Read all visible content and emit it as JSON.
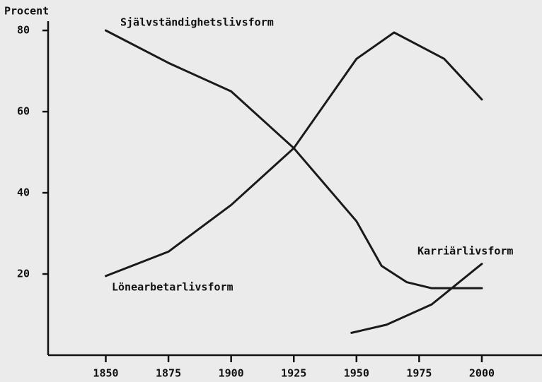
{
  "chart_data": {
    "type": "line",
    "y_label": "Procent",
    "xlim": [
      1827,
      2024
    ],
    "xticks": [
      1850,
      1875,
      1900,
      1925,
      1950,
      1975,
      2000
    ],
    "ylim": [
      0,
      87.5
    ],
    "yticks": [
      20,
      40,
      60,
      80
    ],
    "series": [
      {
        "name": "Självständighetslivsform",
        "color": "#1a1a1a",
        "x": [
          1850,
          1875,
          1900,
          1925,
          1950,
          1960,
          1970,
          1980,
          2000
        ],
        "values": [
          80,
          72,
          65,
          51,
          33,
          22,
          18,
          16.5,
          16.5
        ]
      },
      {
        "name": "Lönearbetarlivsform",
        "color": "#1a1a1a",
        "x": [
          1850,
          1875,
          1900,
          1925,
          1950,
          1965,
          1985,
          2000
        ],
        "values": [
          19.5,
          25.5,
          37,
          51,
          73,
          79.5,
          73,
          63
        ]
      },
      {
        "name": "Karriärlivsform",
        "color": "#1a1a1a",
        "x": [
          1948,
          1962,
          1980,
          2000
        ],
        "values": [
          5.5,
          7.5,
          12.5,
          22.5
        ]
      }
    ]
  }
}
